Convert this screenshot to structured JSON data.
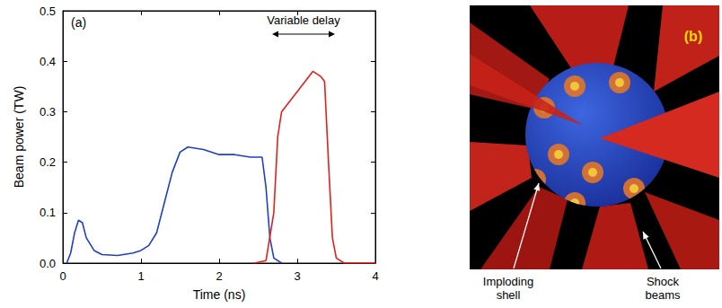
{
  "chart_data": {
    "type": "line",
    "xlabel": "Time (ns)",
    "ylabel": "Beam power (TW)",
    "xlim": [
      0,
      4
    ],
    "xticks": [
      0,
      1,
      2,
      3,
      4
    ],
    "ylim": [
      0,
      0.5
    ],
    "yticks": [
      {
        "value": 0,
        "label": "0.0"
      },
      0.1,
      0.2,
      0.3,
      0.4,
      0.5
    ],
    "grid": false,
    "annotations": [
      "(a)",
      "Variable delay"
    ],
    "series": [
      {
        "color": "#1f3fc4",
        "x": [
          0.05,
          0.1,
          0.15,
          0.2,
          0.25,
          0.3,
          0.4,
          0.5,
          0.7,
          0.9,
          1.0,
          1.1,
          1.2,
          1.3,
          1.4,
          1.5,
          1.6,
          1.8,
          2.0,
          2.2,
          2.4,
          2.55,
          2.6,
          2.65,
          2.7,
          2.8
        ],
        "values": [
          0,
          0.02,
          0.06,
          0.085,
          0.08,
          0.05,
          0.025,
          0.017,
          0.015,
          0.02,
          0.025,
          0.035,
          0.06,
          0.12,
          0.18,
          0.22,
          0.23,
          0.225,
          0.215,
          0.215,
          0.21,
          0.21,
          0.15,
          0.05,
          0.01,
          0
        ]
      },
      {
        "color": "#e0201c",
        "x": [
          2.45,
          2.6,
          2.7,
          2.75,
          2.8,
          2.9,
          3.0,
          3.1,
          3.2,
          3.3,
          3.35,
          3.4,
          3.45,
          3.5,
          3.6,
          4.0
        ],
        "values": [
          0,
          0.005,
          0.1,
          0.25,
          0.3,
          0.32,
          0.34,
          0.36,
          0.38,
          0.37,
          0.36,
          0.2,
          0.05,
          0.01,
          0,
          0
        ]
      }
    ]
  },
  "diagram": {
    "label": "(b)",
    "callouts": [
      "Imploding shell",
      "Shock beams"
    ]
  }
}
